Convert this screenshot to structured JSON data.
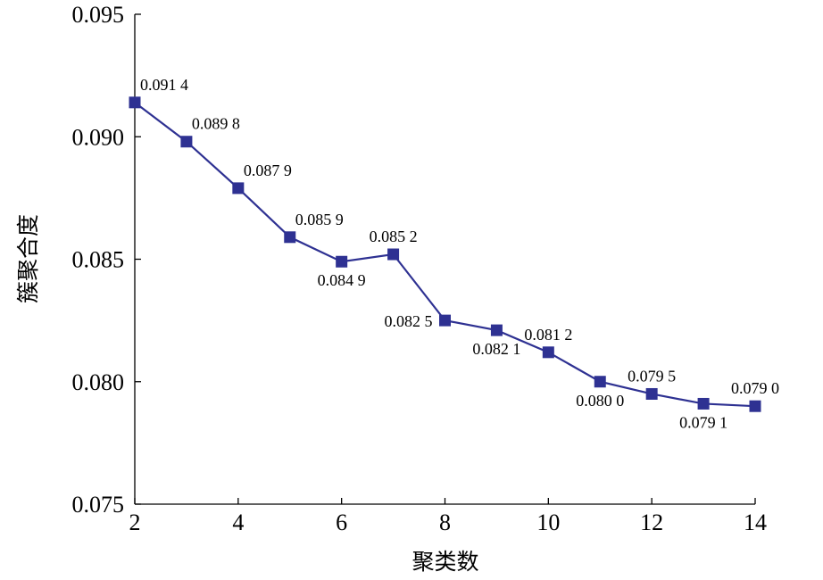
{
  "chart_data": {
    "type": "line",
    "title": "",
    "xlabel": "聚类数",
    "ylabel": "簇聚合度",
    "xlim": [
      2,
      14
    ],
    "ylim": [
      0.075,
      0.095
    ],
    "x_ticks": [
      2,
      4,
      6,
      8,
      10,
      12,
      14
    ],
    "x_tick_labels": [
      "2",
      "4",
      "6",
      "8",
      "10",
      "12",
      "14"
    ],
    "y_ticks": [
      0.075,
      0.08,
      0.085,
      0.09,
      0.095
    ],
    "y_tick_labels": [
      "0.075",
      "0.080",
      "0.085",
      "0.090",
      "0.095"
    ],
    "grid": false,
    "legend": "none",
    "x": [
      2,
      3,
      4,
      5,
      6,
      7,
      8,
      9,
      10,
      11,
      12,
      13,
      14
    ],
    "series": [
      {
        "values": [
          0.0914,
          0.0898,
          0.0879,
          0.0859,
          0.0849,
          0.0852,
          0.0825,
          0.0821,
          0.0812,
          0.08,
          0.0795,
          0.0791,
          0.079
        ],
        "labels": [
          "0.091 4",
          "0.089 8",
          "0.087 9",
          "0.085 9",
          "0.084 9",
          "0.085 2",
          "0.082 5",
          "0.082 1",
          "0.081 2",
          "0.080 0",
          "0.079 5",
          "0.079 1",
          "0.079 0"
        ],
        "color": "#2e3192",
        "marker": "square"
      }
    ]
  }
}
